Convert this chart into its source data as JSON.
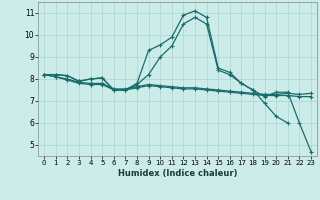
{
  "xlabel": "Humidex (Indice chaleur)",
  "bg_color": "#ccecea",
  "grid_color": "#aad4d0",
  "line_color": "#1a6b6b",
  "xlim": [
    -0.5,
    23.5
  ],
  "ylim": [
    4.5,
    11.5
  ],
  "xticks": [
    0,
    1,
    2,
    3,
    4,
    5,
    6,
    7,
    8,
    9,
    10,
    11,
    12,
    13,
    14,
    15,
    16,
    17,
    18,
    19,
    20,
    21,
    22,
    23
  ],
  "yticks": [
    5,
    6,
    7,
    8,
    9,
    10,
    11
  ],
  "lines": [
    [
      8.2,
      8.2,
      8.15,
      7.9,
      8.0,
      8.05,
      7.5,
      7.5,
      7.8,
      9.3,
      9.55,
      9.9,
      10.9,
      11.1,
      10.8,
      8.5,
      8.3,
      7.8,
      7.5,
      6.9,
      6.3,
      6.0,
      null,
      null
    ],
    [
      8.2,
      8.2,
      8.15,
      7.9,
      8.0,
      8.05,
      7.5,
      7.5,
      7.75,
      8.2,
      9.0,
      9.5,
      10.5,
      10.8,
      10.5,
      8.4,
      8.2,
      7.8,
      7.5,
      7.2,
      7.4,
      7.4,
      6.0,
      4.7
    ],
    [
      8.2,
      8.1,
      8.0,
      7.85,
      7.8,
      7.8,
      7.55,
      7.55,
      7.65,
      7.75,
      7.7,
      7.65,
      7.6,
      7.6,
      7.55,
      7.5,
      7.45,
      7.4,
      7.35,
      7.3,
      7.3,
      7.35,
      7.3,
      7.35
    ],
    [
      8.2,
      8.1,
      7.95,
      7.8,
      7.75,
      7.75,
      7.5,
      7.5,
      7.6,
      7.7,
      7.65,
      7.6,
      7.55,
      7.55,
      7.5,
      7.45,
      7.4,
      7.35,
      7.3,
      7.25,
      7.25,
      7.25,
      7.2,
      7.2
    ]
  ]
}
